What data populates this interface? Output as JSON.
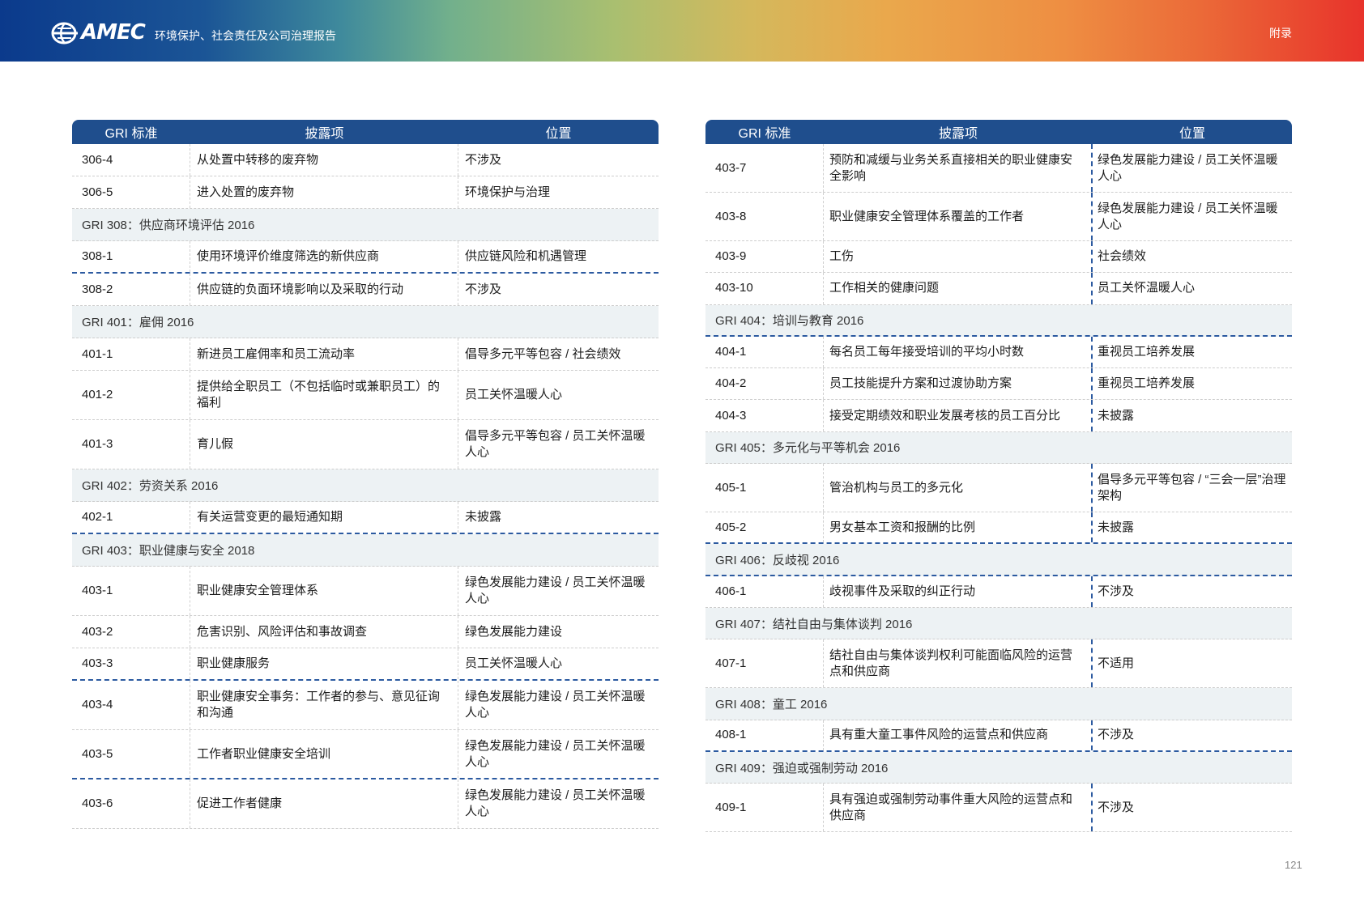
{
  "header": {
    "logo_text": "AMEC",
    "report_title": "环境保护、社会责任及公司治理报告",
    "section_label": "附录"
  },
  "tables": [
    {
      "columns": [
        "GRI 标准",
        "披露项",
        "位置"
      ],
      "rows": [
        {
          "code": "306-4",
          "disclosure": "从处置中转移的废弃物",
          "location": "不涉及"
        },
        {
          "code": "306-5",
          "disclosure": "进入处置的废弃物",
          "location": "环境保护与治理"
        },
        {
          "section": "GRI 308：供应商环境评估 2016"
        },
        {
          "code": "308-1",
          "disclosure": "使用环境评价维度筛选的新供应商",
          "location": "供应链风险和机遇管理"
        },
        {
          "code": "308-2",
          "disclosure": "供应链的负面环境影响以及采取的行动",
          "location": "不涉及"
        },
        {
          "section": "GRI 401：雇佣 2016"
        },
        {
          "code": "401-1",
          "disclosure": "新进员工雇佣率和员工流动率",
          "location": "倡导多元平等包容 / 社会绩效"
        },
        {
          "code": "401-2",
          "disclosure": "提供给全职员工（不包括临时或兼职员工）的福利",
          "location": "员工关怀温暖人心"
        },
        {
          "code": "401-3",
          "disclosure": "育儿假",
          "location": "倡导多元平等包容 / 员工关怀温暖人心"
        },
        {
          "section": "GRI 402：劳资关系 2016"
        },
        {
          "code": "402-1",
          "disclosure": "有关运营变更的最短通知期",
          "location": "未披露"
        },
        {
          "section": "GRI 403：职业健康与安全 2018"
        },
        {
          "code": "403-1",
          "disclosure": "职业健康安全管理体系",
          "location": "绿色发展能力建设 / 员工关怀温暖人心"
        },
        {
          "code": "403-2",
          "disclosure": "危害识别、风险评估和事故调查",
          "location": "绿色发展能力建设"
        },
        {
          "code": "403-3",
          "disclosure": "职业健康服务",
          "location": "员工关怀温暖人心"
        },
        {
          "code": "403-4",
          "disclosure": "职业健康安全事务：工作者的参与、意见征询和沟通",
          "location": "绿色发展能力建设 / 员工关怀温暖人心"
        },
        {
          "code": "403-5",
          "disclosure": "工作者职业健康安全培训",
          "location": "绿色发展能力建设 / 员工关怀温暖人心"
        },
        {
          "code": "403-6",
          "disclosure": "促进工作者健康",
          "location": "绿色发展能力建设 / 员工关怀温暖人心"
        }
      ]
    },
    {
      "columns": [
        "GRI 标准",
        "披露项",
        "位置"
      ],
      "rows": [
        {
          "code": "403-7",
          "disclosure": "预防和减缓与业务关系直接相关的职业健康安全影响",
          "location": "绿色发展能力建设 / 员工关怀温暖人心"
        },
        {
          "code": "403-8",
          "disclosure": "职业健康安全管理体系覆盖的工作者",
          "location": "绿色发展能力建设 / 员工关怀温暖人心"
        },
        {
          "code": "403-9",
          "disclosure": "工伤",
          "location": "社会绩效"
        },
        {
          "code": "403-10",
          "disclosure": "工作相关的健康问题",
          "location": "员工关怀温暖人心"
        },
        {
          "section": "GRI 404：培训与教育 2016"
        },
        {
          "code": "404-1",
          "disclosure": "每名员工每年接受培训的平均小时数",
          "location": "重视员工培养发展"
        },
        {
          "code": "404-2",
          "disclosure": "员工技能提升方案和过渡协助方案",
          "location": "重视员工培养发展"
        },
        {
          "code": "404-3",
          "disclosure": "接受定期绩效和职业发展考核的员工百分比",
          "location": "未披露"
        },
        {
          "section": "GRI 405：多元化与平等机会 2016"
        },
        {
          "code": "405-1",
          "disclosure": "管治机构与员工的多元化",
          "location": "倡导多元平等包容 / “三会一层”治理架构"
        },
        {
          "code": "405-2",
          "disclosure": "男女基本工资和报酬的比例",
          "location": "未披露"
        },
        {
          "section": "GRI 406：反歧视 2016"
        },
        {
          "code": "406-1",
          "disclosure": "歧视事件及采取的纠正行动",
          "location": "不涉及"
        },
        {
          "section": "GRI 407：结社自由与集体谈判 2016"
        },
        {
          "code": "407-1",
          "disclosure": "结社自由与集体谈判权利可能面临风险的运营点和供应商",
          "location": "不适用"
        },
        {
          "section": "GRI 408：童工 2016"
        },
        {
          "code": "408-1",
          "disclosure": "具有重大童工事件风险的运营点和供应商",
          "location": "不涉及"
        },
        {
          "section": "GRI 409：强迫或强制劳动 2016"
        },
        {
          "code": "409-1",
          "disclosure": "具有强迫或强制劳动事件重大风险的运营点和供应商",
          "location": "不涉及"
        }
      ]
    }
  ],
  "page_number": "121"
}
